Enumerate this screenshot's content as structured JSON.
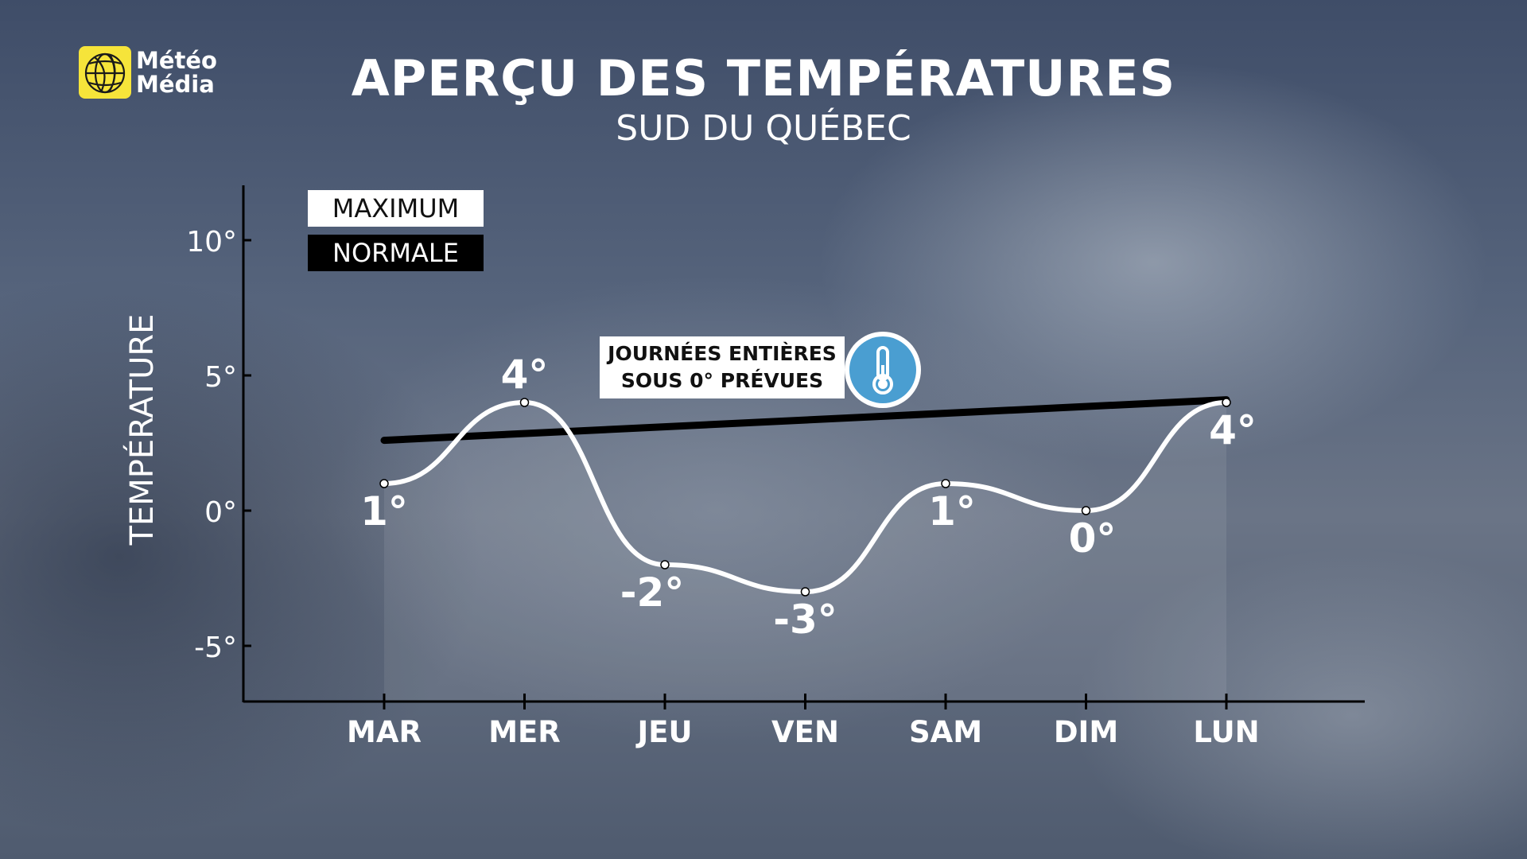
{
  "logo": {
    "line1": "Météo",
    "line2": "Média"
  },
  "header": {
    "title": "APERÇU DES TEMPÉRATURES",
    "subtitle": "SUD DU QUÉBEC"
  },
  "legend": {
    "maximum": "MAXIMUM",
    "normale": "NORMALE"
  },
  "callout": {
    "line1": "JOURNÉES ENTIÈRES",
    "line2": "SOUS 0° PRÉVUES",
    "icon": "thermometer-icon"
  },
  "colors": {
    "max_line": "#ffffff",
    "normal_line": "#000000",
    "logo": "#f6e43a",
    "thermo": "#4a9ed1"
  },
  "chart_data": {
    "type": "line",
    "ylabel": "TEMPÉRATURE",
    "xlabel": "",
    "categories": [
      "MAR",
      "MER",
      "JEU",
      "VEN",
      "SAM",
      "DIM",
      "LUN"
    ],
    "ylim": [
      -7,
      12
    ],
    "yticks": [
      10,
      5,
      0,
      -5
    ],
    "ytick_labels": [
      "10°",
      "5°",
      "0°",
      "-5°"
    ],
    "grid": false,
    "legend_position": "top-left",
    "series": [
      {
        "name": "MAXIMUM",
        "values": [
          1,
          4,
          -2,
          -3,
          1,
          0,
          4
        ],
        "labels": [
          "1°",
          "4°",
          "-2°",
          "-3°",
          "1°",
          "0°",
          "4°"
        ]
      },
      {
        "name": "NORMALE",
        "values": [
          2.6,
          null,
          null,
          null,
          null,
          null,
          4.1
        ]
      }
    ]
  }
}
